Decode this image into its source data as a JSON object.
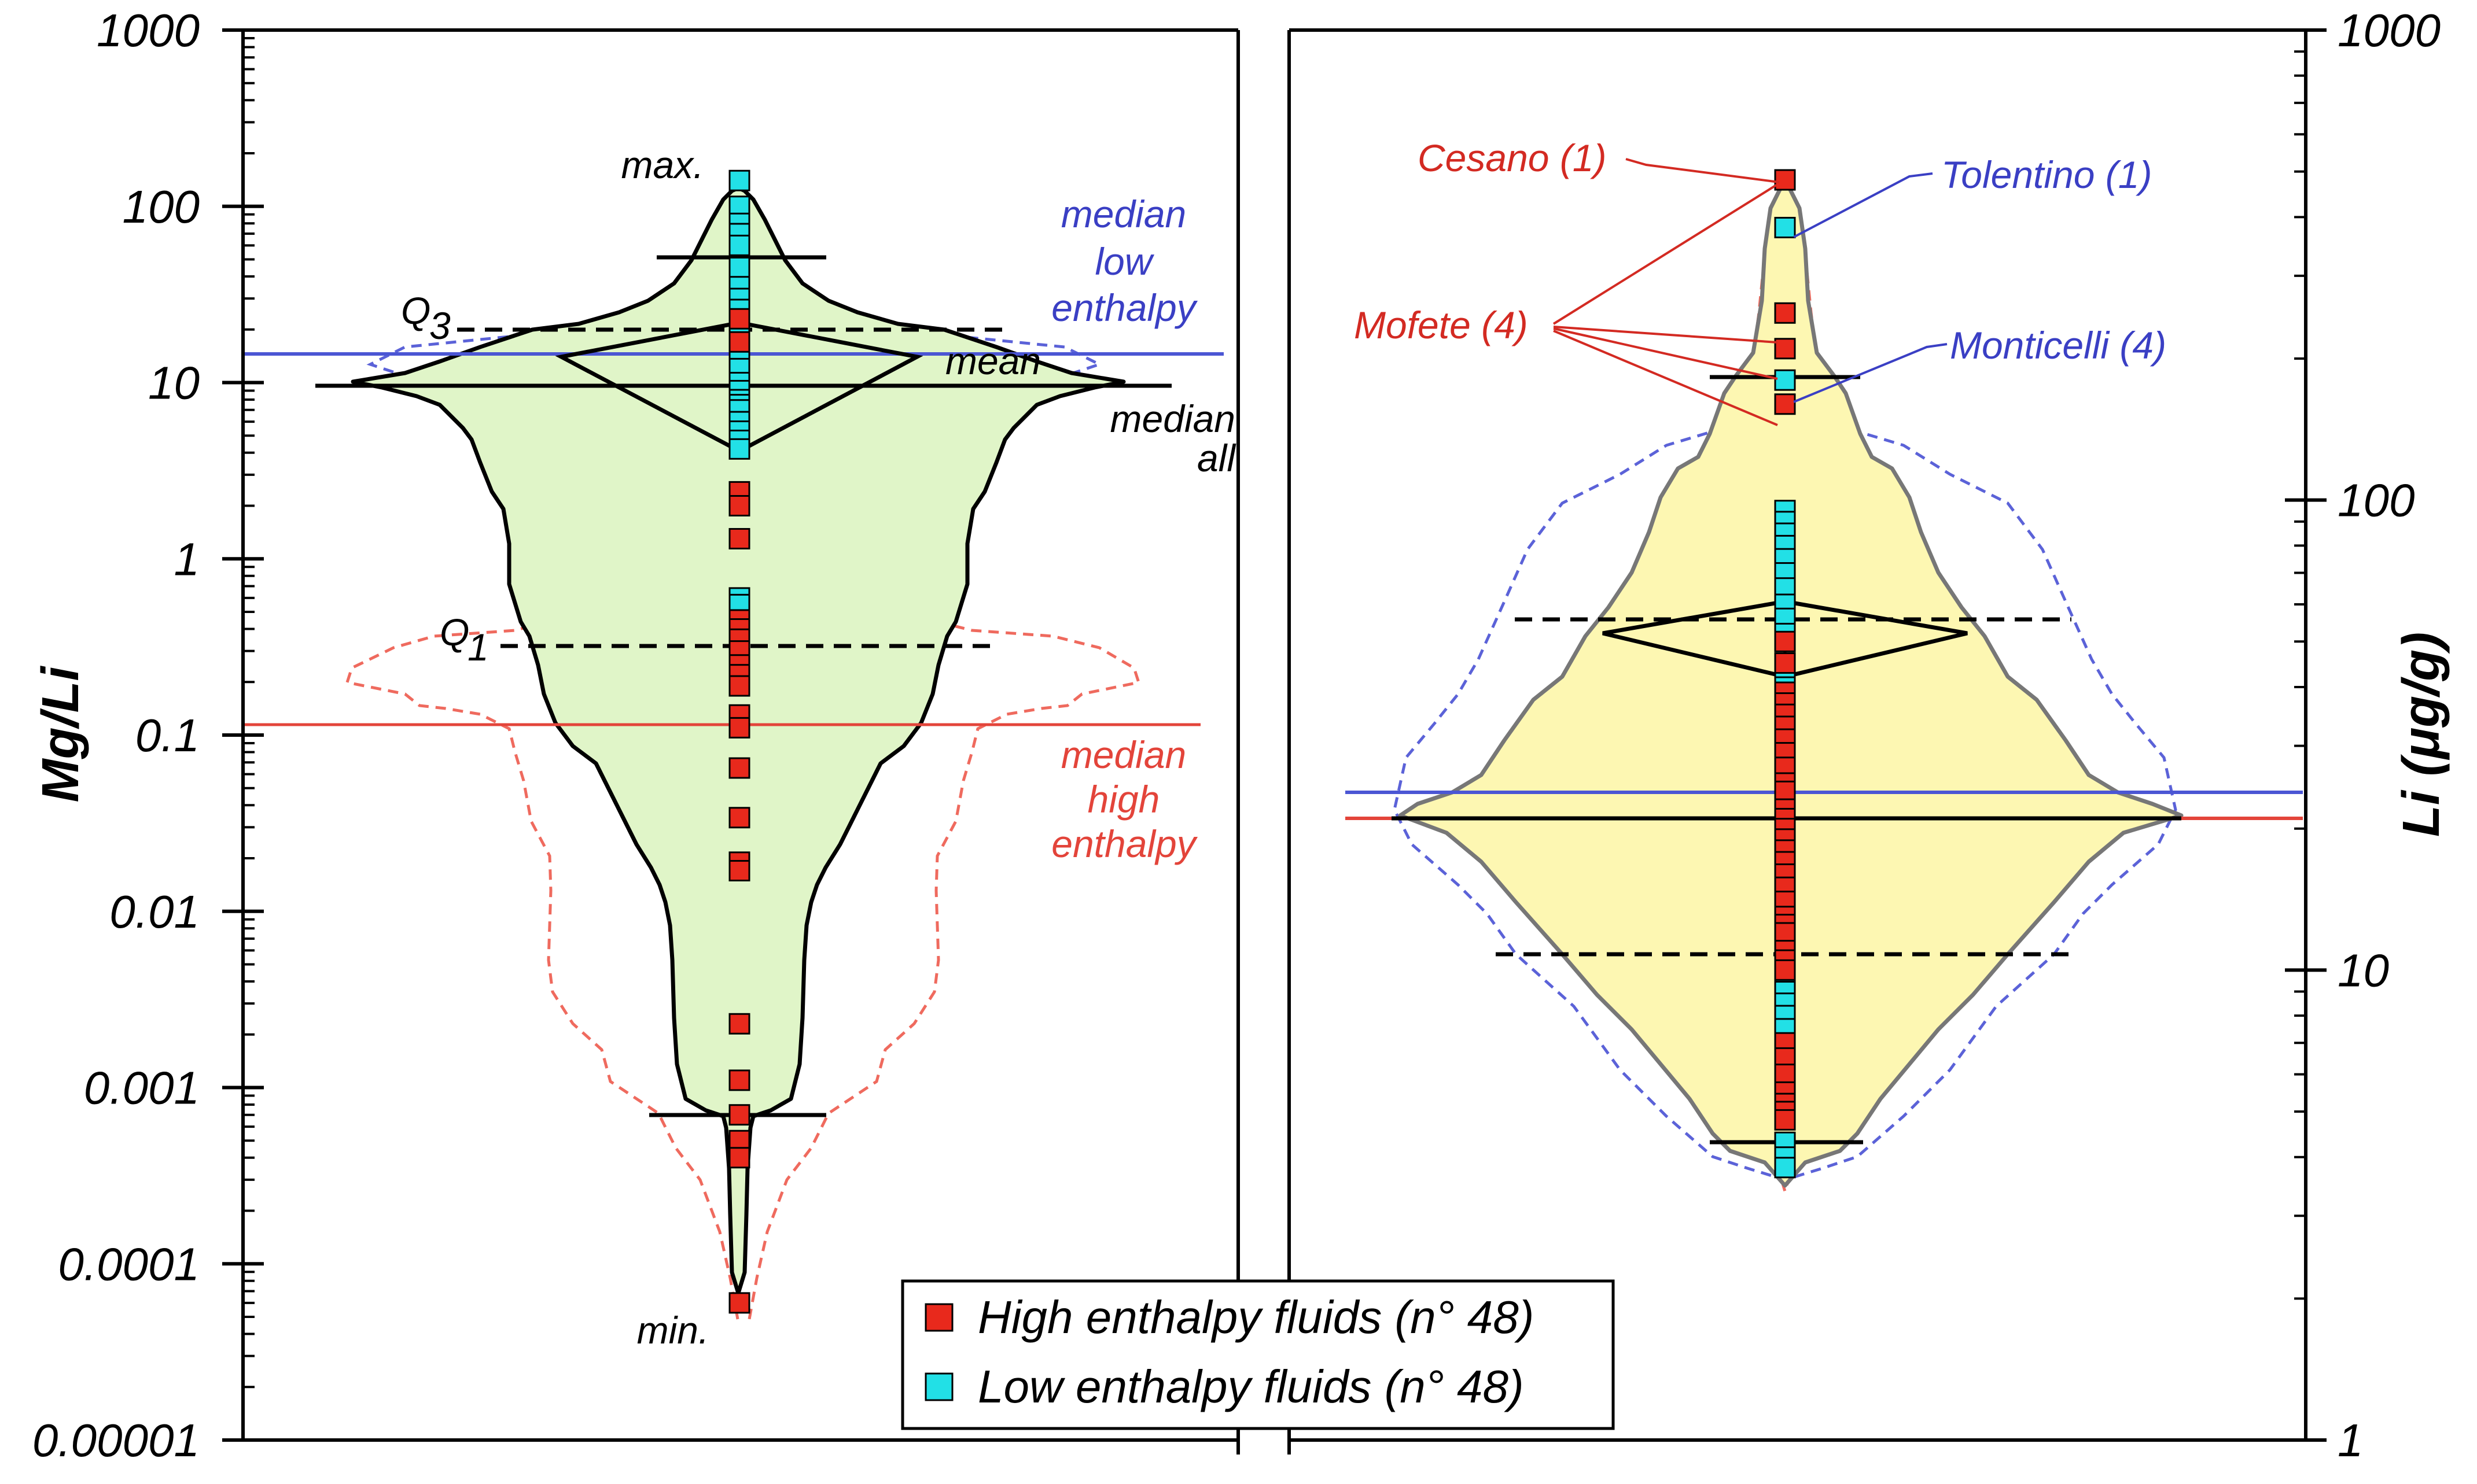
{
  "chart_data": [
    {
      "type": "violin-box",
      "panel": "left",
      "ylabel": "Mg/Li",
      "yscale": "log",
      "ylim": [
        1e-05,
        1000
      ],
      "y_ticks": [
        "1000",
        "100",
        "10",
        "1",
        "0.1",
        "0.01",
        "0.001",
        "0.0001",
        "0.00001"
      ],
      "stats": {
        "max": 140,
        "p95": 55,
        "q3": 22,
        "median": 10,
        "mean": 14,
        "q1": 0.33,
        "p5": 0.0007,
        "min": 6e-05
      },
      "median_low_enthalpy": 15,
      "median_high_enthalpy": 0.12,
      "annotations": {
        "max": "max.",
        "min": "min.",
        "q3": "Q3",
        "q1": "Q1",
        "mean": "mean",
        "median_all": [
          "median",
          "all"
        ],
        "median_low": [
          "median",
          "low",
          "enthalpy"
        ],
        "median_high": [
          "median",
          "high",
          "enthalpy"
        ]
      },
      "high_enthalpy_values": [
        23,
        17,
        2.4,
        2.0,
        1.3,
        0.45,
        0.4,
        0.35,
        0.3,
        0.25,
        0.22,
        0.19,
        0.13,
        0.11,
        0.065,
        0.034,
        0.019,
        0.017,
        0.0023,
        0.0011,
        0.0007,
        0.0005,
        0.0004,
        6e-05
      ],
      "low_enthalpy_values": [
        140,
        100,
        80,
        70,
        60,
        45,
        35,
        30,
        26,
        20,
        18,
        16,
        14,
        12,
        10,
        9,
        8,
        7.5,
        7,
        6,
        5.3,
        4.7,
        4.2,
        0.6,
        0.55
      ]
    },
    {
      "type": "violin-box",
      "panel": "right",
      "ylabel": "Li (μg/g)",
      "yscale": "log",
      "ylim": [
        1,
        1000
      ],
      "y_ticks": [
        "1000",
        "100",
        "10",
        "1"
      ],
      "stats": {
        "max": 480,
        "p95": 210,
        "q3": 53,
        "median": 21,
        "mean": 45,
        "q1": 11,
        "p5": 4.6,
        "min": 3.8
      },
      "median_low_enthalpy": 23,
      "median_high_enthalpy": 21,
      "annotations": {
        "cesano": "Cesano (1)",
        "tolentino": "Tolentino (1)",
        "mofete": "Mofete (4)",
        "monticelli": "Monticelli (4)"
      },
      "high_enthalpy_values": [
        480,
        250,
        210,
        160,
        50,
        45,
        39,
        37,
        35,
        33,
        31,
        29,
        27,
        25,
        24,
        22,
        21,
        20,
        19,
        18,
        17,
        16,
        15,
        14,
        13,
        12.5,
        12,
        11,
        10.5,
        10,
        7,
        6.5,
        6,
        5.5,
        5.2,
        5,
        4.8
      ],
      "low_enthalpy_values": [
        380,
        180,
        95,
        90,
        85,
        80,
        75,
        70,
        65,
        60,
        56,
        52,
        45,
        42,
        40,
        38,
        36,
        34,
        31,
        28,
        26,
        24,
        22,
        20,
        18,
        16,
        15,
        14,
        13,
        12,
        11,
        10,
        9.5,
        9,
        8.5,
        8,
        7.5,
        6,
        5.5,
        4.3,
        4.0,
        3.8
      ]
    }
  ],
  "legend": {
    "high_label": "High enthalpy fluids (n° 48)",
    "low_label": "Low enthalpy fluids (n° 48)",
    "high_color": "#e8291c",
    "low_color": "#22e0e6"
  },
  "colors": {
    "left_fill": "#e0f5c8",
    "right_fill": "#fdf7b2",
    "low_median_line": "#4b56d4",
    "high_median_line": "#e3443a",
    "low_dashed": "#5b62d8",
    "high_dashed": "#ef6a5e"
  }
}
